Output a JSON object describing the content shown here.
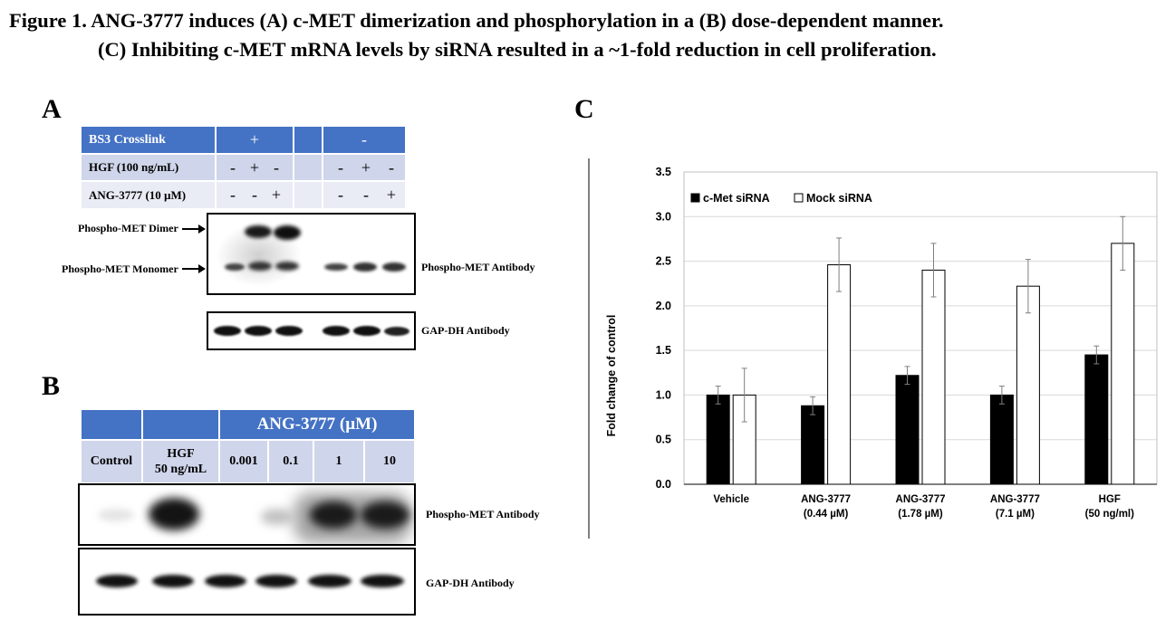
{
  "caption": {
    "line1": "Figure 1. ANG-3777 induces (A) c-MET dimerization and phosphorylation in a (B) dose-dependent manner.",
    "line2": "(C) Inhibiting c-MET mRNA levels by siRNA resulted in a ~1-fold reduction in cell proliferation."
  },
  "panelA": {
    "letter": "A",
    "table": {
      "row1": {
        "label": "BS3 Crosslink",
        "plus": "+",
        "minus": "-"
      },
      "row2": {
        "label": "HGF (100 ng/mL)",
        "values": [
          "-",
          "+",
          "-",
          "-",
          "+",
          "-"
        ]
      },
      "row3": {
        "label": "ANG-3777 (10 µM)",
        "values": [
          "-",
          "-",
          "+",
          "-",
          "-",
          "+"
        ]
      }
    },
    "labels": {
      "dimer": "Phospho-MET Dimer",
      "monomer": "Phospho-MET Monomer",
      "phospho_antibody": "Phospho-MET Antibody",
      "gapdh_antibody": "GAP-DH Antibody"
    }
  },
  "panelB": {
    "letter": "B",
    "header": "ANG-3777 (µM)",
    "columns": [
      "Control",
      "HGF",
      "50 ng/mL",
      "0.001",
      "0.1",
      "1",
      "10"
    ],
    "labels": {
      "phospho_antibody": "Phospho-MET Antibody",
      "gapdh_antibody": "GAP-DH Antibody"
    }
  },
  "panelC": {
    "letter": "C"
  },
  "chart_data": {
    "type": "bar",
    "categories": [
      "Vehicle",
      "ANG-3777\n(0.44 µM)",
      "ANG-3777\n(1.78 µM)",
      "ANG-3777\n(7.1 µM)",
      "HGF\n(50 ng/ml)"
    ],
    "category_lines": [
      [
        "Vehicle"
      ],
      [
        "ANG-3777",
        "(0.44 µM)"
      ],
      [
        "ANG-3777",
        "(1.78 µM)"
      ],
      [
        "ANG-3777",
        "(7.1 µM)"
      ],
      [
        "HGF",
        "(50 ng/ml)"
      ]
    ],
    "series": [
      {
        "name": "c-Met siRNA",
        "values": [
          1.0,
          0.88,
          1.22,
          1.0,
          1.45
        ],
        "errors": [
          0.1,
          0.1,
          0.1,
          0.1,
          0.1
        ],
        "color": "#000000"
      },
      {
        "name": "Mock siRNA",
        "values": [
          1.0,
          2.46,
          2.4,
          2.22,
          2.7
        ],
        "errors": [
          0.3,
          0.3,
          0.3,
          0.3,
          0.3
        ],
        "color": "#ffffff"
      }
    ],
    "ylabel": "Fold change of control",
    "ylim": [
      0,
      3.5
    ],
    "yticks": [
      "0.0",
      "0.5",
      "1.0",
      "1.5",
      "2.0",
      "2.5",
      "3.0",
      "3.5"
    ],
    "grid": true,
    "legend": "top-left"
  }
}
